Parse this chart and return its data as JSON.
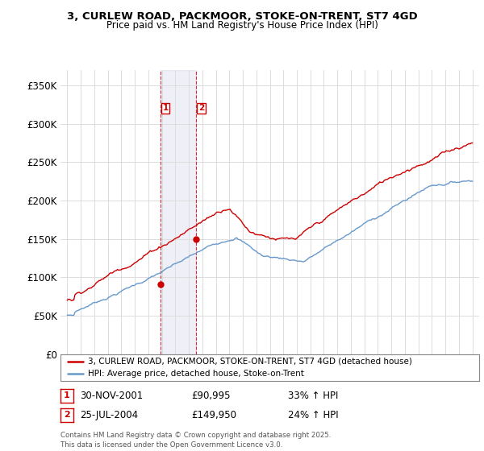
{
  "title": "3, CURLEW ROAD, PACKMOOR, STOKE-ON-TRENT, ST7 4GD",
  "subtitle": "Price paid vs. HM Land Registry's House Price Index (HPI)",
  "legend_line1": "3, CURLEW ROAD, PACKMOOR, STOKE-ON-TRENT, ST7 4GD (detached house)",
  "legend_line2": "HPI: Average price, detached house, Stoke-on-Trent",
  "annotation1_label": "1",
  "annotation1_date": "30-NOV-2001",
  "annotation1_price": "£90,995",
  "annotation1_hpi": "33% ↑ HPI",
  "annotation2_label": "2",
  "annotation2_date": "25-JUL-2004",
  "annotation2_price": "£149,950",
  "annotation2_hpi": "24% ↑ HPI",
  "footer": "Contains HM Land Registry data © Crown copyright and database right 2025.\nThis data is licensed under the Open Government Licence v3.0.",
  "red_color": "#cc0000",
  "blue_color": "#6699cc",
  "background_color": "#ffffff",
  "grid_color": "#dddddd",
  "sale1_x": 2001.917,
  "sale1_y": 90995,
  "sale2_x": 2004.556,
  "sale2_y": 149950,
  "ylim": [
    0,
    370000
  ],
  "xlim": [
    1994.5,
    2025.5
  ],
  "yticks": [
    0,
    50000,
    100000,
    150000,
    200000,
    250000,
    300000,
    350000
  ],
  "ytick_labels": [
    "£0",
    "£50K",
    "£100K",
    "£150K",
    "£200K",
    "£250K",
    "£300K",
    "£350K"
  ]
}
